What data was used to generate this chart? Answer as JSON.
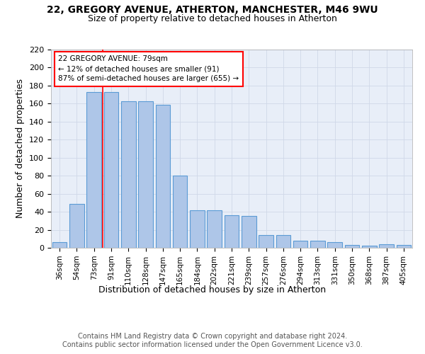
{
  "title1": "22, GREGORY AVENUE, ATHERTON, MANCHESTER, M46 9WU",
  "title2": "Size of property relative to detached houses in Atherton",
  "xlabel": "Distribution of detached houses by size in Atherton",
  "ylabel": "Number of detached properties",
  "footer1": "Contains HM Land Registry data © Crown copyright and database right 2024.",
  "footer2": "Contains public sector information licensed under the Open Government Licence v3.0.",
  "bar_labels": [
    "36sqm",
    "54sqm",
    "73sqm",
    "91sqm",
    "110sqm",
    "128sqm",
    "147sqm",
    "165sqm",
    "184sqm",
    "202sqm",
    "221sqm",
    "239sqm",
    "257sqm",
    "276sqm",
    "294sqm",
    "313sqm",
    "331sqm",
    "350sqm",
    "368sqm",
    "387sqm",
    "405sqm"
  ],
  "bar_values": [
    6,
    49,
    173,
    173,
    163,
    163,
    159,
    80,
    42,
    42,
    36,
    35,
    14,
    14,
    8,
    8,
    6,
    3,
    2,
    4,
    3
  ],
  "bar_color": "#aec6e8",
  "bar_edge_color": "#5b9bd5",
  "grid_color": "#d0d8e8",
  "background_color": "#e8eef8",
  "red_line_x": 2.5,
  "annotation_text": "22 GREGORY AVENUE: 79sqm\n← 12% of detached houses are smaller (91)\n87% of semi-detached houses are larger (655) →",
  "annotation_box_color": "white",
  "annotation_box_edge": "red",
  "ylim": [
    0,
    220
  ],
  "yticks": [
    0,
    20,
    40,
    60,
    80,
    100,
    120,
    140,
    160,
    180,
    200,
    220
  ]
}
